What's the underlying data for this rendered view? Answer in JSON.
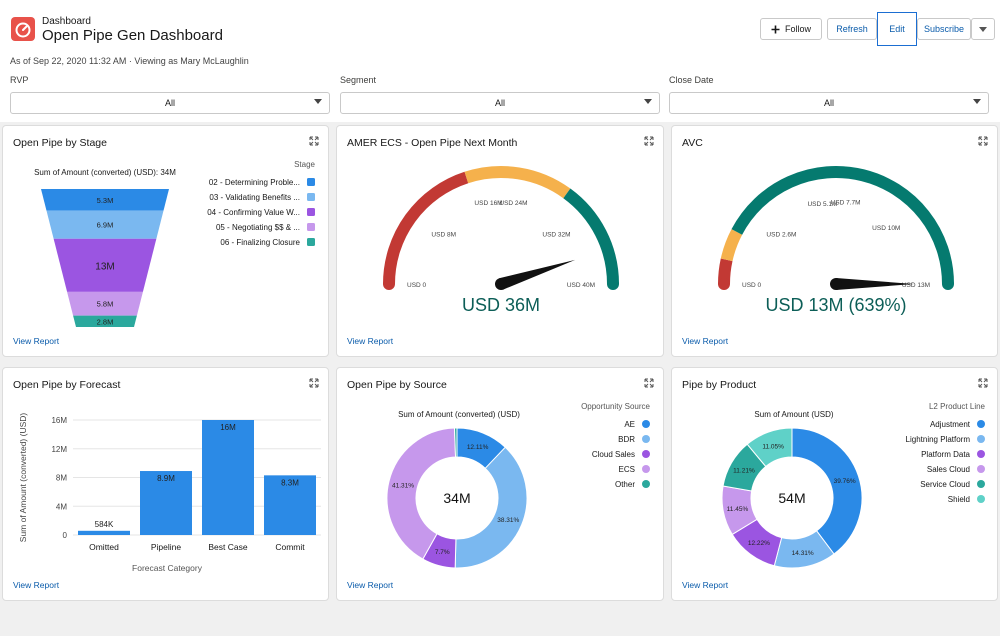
{
  "header": {
    "breadcrumb": "Dashboard",
    "title": "Open Pipe Gen Dashboard",
    "as_of": "As of Sep 22, 2020 11:32 AM · Viewing as Mary McLaughlin",
    "buttons": {
      "follow": "Follow",
      "refresh": "Refresh",
      "edit": "Edit",
      "subscribe": "Subscribe"
    },
    "icons": {
      "app": "dashboard-gauge-icon",
      "follow": "plus-icon",
      "more": "chevron-down-icon"
    }
  },
  "filters": [
    {
      "label": "RVP",
      "value": "All"
    },
    {
      "label": "Segment",
      "value": "All"
    },
    {
      "label": "Close Date",
      "value": "All"
    }
  ],
  "common": {
    "view_report": "View Report"
  },
  "colors": {
    "accent": "#0b5cab",
    "bar": "#2b8ae6",
    "gauge_red": "#c23934",
    "gauge_yellow": "#f5b14c",
    "gauge_teal": "#057a6f",
    "value_text": "#0c5e57"
  },
  "cards": {
    "funnel": {
      "title": "Open Pipe by Stage",
      "chart_data": {
        "type": "funnel",
        "title": "Sum of Amount (converted) (USD): 34M",
        "legend_title": "Stage",
        "stages": [
          {
            "name": "02 - Determining Proble...",
            "value": 5.3,
            "label": "5.3M",
            "color": "#2b8ae6"
          },
          {
            "name": "03 - Validating Benefits ...",
            "value": 6.9,
            "label": "6.9M",
            "color": "#7ab8f0"
          },
          {
            "name": "04 - Confirming Value W...",
            "value": 13,
            "label": "13M",
            "color": "#9b55e1"
          },
          {
            "name": "05 - Negotiating $$ & ...",
            "value": 5.8,
            "label": "5.8M",
            "color": "#c698ec"
          },
          {
            "name": "06 - Finalizing Closure",
            "value": 2.8,
            "label": "2.8M",
            "color": "#2ba89d"
          }
        ]
      }
    },
    "gauge1": {
      "title": "AMER ECS - Open Pipe Next Month",
      "chart_data": {
        "type": "gauge",
        "min": 0,
        "max": 40,
        "value": 36,
        "value_label": "USD 36M",
        "ticks": [
          {
            "v": 0,
            "t": "USD 0"
          },
          {
            "v": 8,
            "t": "USD 8M"
          },
          {
            "v": 16,
            "t": "USD 16M"
          },
          {
            "v": 24,
            "t": "USD 24M"
          },
          {
            "v": 32,
            "t": "USD 32M"
          },
          {
            "v": 40,
            "t": "USD 40M"
          }
        ],
        "bands": [
          {
            "from": 0,
            "to": 16,
            "color": "#c23934"
          },
          {
            "from": 16,
            "to": 28,
            "color": "#f5b14c"
          },
          {
            "from": 28,
            "to": 40,
            "color": "#057a6f"
          }
        ]
      }
    },
    "gauge2": {
      "title": "AVC",
      "chart_data": {
        "type": "gauge",
        "min": 0,
        "max": 13,
        "value": 13,
        "value_label": "USD 13M (639%)",
        "ticks": [
          {
            "v": 0,
            "t": "USD 0"
          },
          {
            "v": 2.6,
            "t": "USD 2.6M"
          },
          {
            "v": 5.1,
            "t": "USD 5.1M"
          },
          {
            "v": 7.7,
            "t": "USD 7.7M"
          },
          {
            "v": 10,
            "t": "USD 10M"
          },
          {
            "v": 13,
            "t": "USD 13M"
          }
        ],
        "bands": [
          {
            "from": 0,
            "to": 0.9,
            "color": "#c23934"
          },
          {
            "from": 0.9,
            "to": 2,
            "color": "#f5b14c"
          },
          {
            "from": 2,
            "to": 13,
            "color": "#057a6f"
          }
        ]
      }
    },
    "bar": {
      "title": "Open Pipe by Forecast",
      "chart_data": {
        "type": "bar",
        "categories": [
          "Omitted",
          "Pipeline",
          "Best Case",
          "Commit"
        ],
        "values": [
          0.584,
          8.9,
          16,
          8.3
        ],
        "data_labels": [
          "584K",
          "8.9M",
          "16M",
          "8.3M"
        ],
        "y_ticks": [
          "0",
          "4M",
          "8M",
          "12M",
          "16M"
        ],
        "ylim": [
          0,
          16
        ],
        "xlabel": "Forecast Category",
        "ylabel": "Sum of Amount (converted) (USD)",
        "color": "#2b8ae6"
      }
    },
    "donut1": {
      "title": "Open Pipe by Source",
      "chart_data": {
        "type": "donut",
        "title": "Sum of Amount (converted) (USD)",
        "legend_title": "Opportunity Source",
        "center_label": "34M",
        "slices": [
          {
            "name": "AE",
            "value": 12.11,
            "label": "12.11%",
            "color": "#2b8ae6"
          },
          {
            "name": "BDR",
            "value": 38.31,
            "label": "38.31%",
            "color": "#7ab8f0"
          },
          {
            "name": "Cloud Sales",
            "value": 7.7,
            "label": "7.7%",
            "color": "#9b55e1"
          },
          {
            "name": "ECS",
            "value": 41.31,
            "label": "41.31%",
            "color": "#c698ec"
          },
          {
            "name": "Other",
            "value": 0.57,
            "label": "",
            "color": "#2ba89d"
          }
        ]
      }
    },
    "donut2": {
      "title": "Pipe by Product",
      "chart_data": {
        "type": "donut",
        "title": "Sum of Amount (USD)",
        "legend_title": "L2 Product Line",
        "center_label": "54M",
        "slices": [
          {
            "name": "Adjustment",
            "value": 39.76,
            "label": "39.76%",
            "color": "#2b8ae6"
          },
          {
            "name": "Lightning Platform",
            "value": 14.31,
            "label": "14.31%",
            "color": "#7ab8f0"
          },
          {
            "name": "Platform Data",
            "value": 12.22,
            "label": "12.22%",
            "color": "#9b55e1"
          },
          {
            "name": "Sales Cloud",
            "value": 11.45,
            "label": "11.45%",
            "color": "#c698ec"
          },
          {
            "name": "Service Cloud",
            "value": 11.21,
            "label": "11.21%",
            "color": "#2ba89d"
          },
          {
            "name": "Shield",
            "value": 11.05,
            "label": "11.05%",
            "color": "#5fd1c8"
          }
        ]
      }
    }
  }
}
